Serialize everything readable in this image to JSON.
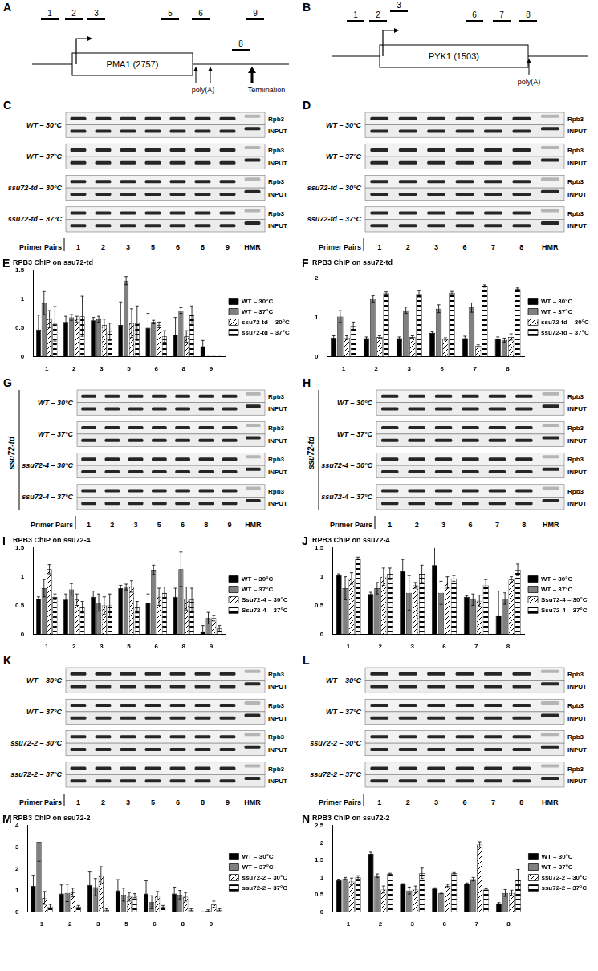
{
  "diagrams": [
    {
      "panel": "A",
      "gene": "PMA1 (2757)",
      "primers": [
        "1",
        "2",
        "3",
        "5",
        "6",
        "8",
        "9"
      ],
      "poly_a": "poly(A)",
      "termination": "Termination"
    },
    {
      "panel": "B",
      "gene": "PYK1 (1503)",
      "primers": [
        "1",
        "2",
        "3",
        "6",
        "7",
        "8"
      ],
      "poly_a": "poly(A)"
    }
  ],
  "gels": [
    {
      "panel": "C",
      "conditions": [
        "WT – 30°C",
        "WT – 37°C",
        "ssu72-td – 30°C",
        "ssu72-td – 37°C"
      ],
      "rows": [
        "Rpb3",
        "INPUT"
      ],
      "lanes": [
        "1",
        "2",
        "3",
        "5",
        "6",
        "8",
        "9",
        "HMR"
      ],
      "axis_label": "Primer Pairs"
    },
    {
      "panel": "D",
      "conditions": [
        "WT – 30°C",
        "WT – 37°C",
        "ssu72-td – 30°C",
        "ssu72-td – 37°C"
      ],
      "rows": [
        "Rpb3",
        "INPUT"
      ],
      "lanes": [
        "1",
        "2",
        "3",
        "6",
        "7",
        "8",
        "HMR"
      ],
      "axis_label": "Primer Pairs"
    },
    {
      "panel": "G",
      "side_label": "ssu72-td",
      "conditions": [
        "WT – 30°C",
        "WT – 37°C",
        "ssu72-4 – 30°C",
        "ssu72-4 – 37°C"
      ],
      "rows": [
        "Rpb3",
        "INPUT"
      ],
      "lanes": [
        "1",
        "2",
        "3",
        "5",
        "6",
        "8",
        "9",
        "HMR"
      ],
      "axis_label": "Primer Pairs"
    },
    {
      "panel": "H",
      "side_label": "ssu72-td",
      "conditions": [
        "WT – 30°C",
        "WT – 37°C",
        "ssu72-4 – 30°C",
        "ssu72-4 – 37°C"
      ],
      "rows": [
        "Rpb3",
        "INPUT"
      ],
      "lanes": [
        "1",
        "2",
        "3",
        "6",
        "7",
        "8",
        "HMR"
      ],
      "axis_label": "Primer Pairs"
    },
    {
      "panel": "K",
      "conditions": [
        "WT – 30°C",
        "WT – 37°C",
        "ssu72-2 – 30°C",
        "ssu72-2 – 37°C"
      ],
      "rows": [
        "Rpb3",
        "INPUT"
      ],
      "lanes": [
        "1",
        "2",
        "3",
        "5",
        "6",
        "8",
        "9",
        "HMR"
      ],
      "axis_label": "Primer Pairs"
    },
    {
      "panel": "L",
      "conditions": [
        "WT – 30°C",
        "WT – 37°C",
        "ssu72-2 – 30°C",
        "ssu72-2 – 37°C"
      ],
      "rows": [
        "Rpb3",
        "INPUT"
      ],
      "lanes": [
        "1",
        "2",
        "3",
        "6",
        "7",
        "8",
        "HMR"
      ],
      "axis_label": "Primer Pairs"
    }
  ],
  "chart_data": [
    {
      "panel": "E",
      "type": "bar",
      "title": "RPB3 ChIP on ssu72-td",
      "categories": [
        "1",
        "2",
        "3",
        "5",
        "6",
        "8",
        "9"
      ],
      "series": [
        {
          "name": "WT – 30°C",
          "color": "#000000",
          "values": [
            0.47,
            0.6,
            0.63,
            0.55,
            0.5,
            0.38,
            0.18
          ],
          "error": [
            0.25,
            0.1,
            0.05,
            0.4,
            0.25,
            0.3,
            0.1
          ]
        },
        {
          "name": "WT – 37°C",
          "color": "#808080",
          "values": [
            0.93,
            0.68,
            0.65,
            1.32,
            0.6,
            0.8,
            0
          ],
          "error": [
            0.2,
            0.05,
            0.05,
            0.07,
            0.03,
            0.05,
            0
          ]
        },
        {
          "name": "ssu72-td – 30°C",
          "color": "#000000",
          "values": [
            0.65,
            0.65,
            0.55,
            0.58,
            0.55,
            0.35,
            0
          ],
          "error": [
            0.15,
            0.05,
            0.1,
            0.25,
            0.05,
            0.1,
            0
          ]
        },
        {
          "name": "ssu72-td – 37°C",
          "color": "#000000",
          "values": [
            0.57,
            0.7,
            0.43,
            0.58,
            0.35,
            0.73,
            0
          ],
          "error": [
            0.3,
            0.35,
            0.15,
            0.3,
            0.1,
            0.15,
            0
          ]
        }
      ],
      "ylim": [
        0,
        1.5
      ],
      "yticks": [
        0,
        0.5,
        1,
        1.5
      ],
      "grid": false,
      "legend": "right"
    },
    {
      "panel": "F",
      "type": "bar",
      "title": "RPB3 ChIP on ssu72-td",
      "categories": [
        "1",
        "2",
        "3",
        "6",
        "7",
        "8"
      ],
      "series": [
        {
          "name": "WT – 30°C",
          "color": "#000000",
          "values": [
            0.48,
            0.47,
            0.47,
            0.6,
            0.47,
            0.45
          ],
          "error": [
            0.05,
            0.03,
            0.03,
            0.03,
            0.05,
            0.05
          ]
        },
        {
          "name": "WT – 37°C",
          "color": "#808080",
          "values": [
            1.02,
            1.47,
            1.18,
            1.22,
            1.25,
            0.42
          ],
          "error": [
            0.15,
            0.08,
            0.08,
            0.1,
            0.12,
            0.05
          ]
        },
        {
          "name": "ssu72-td – 30°C",
          "color": "#000000",
          "values": [
            0.48,
            0.5,
            0.5,
            0.45,
            0.27,
            0.5
          ],
          "error": [
            0.05,
            0.03,
            0.03,
            0.03,
            0.03,
            0.08
          ]
        },
        {
          "name": "ssu72-td – 37°C",
          "color": "#000000",
          "values": [
            0.78,
            1.62,
            1.6,
            1.63,
            1.8,
            1.72
          ],
          "error": [
            0.1,
            0.03,
            0.08,
            0.03,
            0.03,
            0.03
          ]
        }
      ],
      "ylim": [
        0,
        2.2
      ],
      "yticks": [
        0,
        1,
        2
      ],
      "grid": false,
      "legend": "right"
    },
    {
      "panel": "I",
      "type": "bar",
      "title": "RPB3 ChIP on ssu72-4",
      "categories": [
        "1",
        "2",
        "3",
        "5",
        "6",
        "8",
        "9"
      ],
      "series": [
        {
          "name": "WT – 30°C",
          "color": "#000000",
          "values": [
            0.62,
            0.6,
            0.65,
            0.8,
            0.55,
            0.65,
            0.05
          ],
          "error": [
            0.03,
            0.1,
            0.1,
            0.05,
            0.15,
            0.15,
            0.1
          ]
        },
        {
          "name": "WT – 37°C",
          "color": "#808080",
          "values": [
            0.8,
            0.78,
            0.55,
            0.82,
            1.12,
            1.13,
            0.28
          ],
          "error": [
            0.15,
            0.1,
            0.15,
            0.05,
            0.08,
            0.3,
            0.1
          ]
        },
        {
          "name": "Ssu72-4 – 30°C",
          "color": "#000000",
          "values": [
            1.13,
            0.6,
            0.5,
            0.83,
            0.65,
            0.62,
            0.28
          ],
          "error": [
            0.08,
            0.1,
            0.15,
            0.1,
            0.15,
            0.2,
            0.05
          ]
        },
        {
          "name": "Ssu72-4 – 37°C",
          "color": "#000000",
          "values": [
            0.65,
            0.47,
            0.5,
            0.47,
            0.72,
            0.6,
            0.1
          ],
          "error": [
            0.05,
            0.1,
            0.2,
            0.1,
            0.1,
            0.2,
            0.05
          ]
        }
      ],
      "ylim": [
        0,
        1.5
      ],
      "yticks": [
        0,
        0.5,
        1,
        1.5
      ],
      "grid": false,
      "legend": "right"
    },
    {
      "panel": "J",
      "type": "bar",
      "title": "RPB3 ChIP on ssu72-4",
      "categories": [
        "1",
        "2",
        "3",
        "6",
        "7",
        "8"
      ],
      "series": [
        {
          "name": "WT – 30°C",
          "color": "#000000",
          "values": [
            1.03,
            0.7,
            1.1,
            1.2,
            0.65,
            0.33
          ],
          "error": [
            0.02,
            0.03,
            0.2,
            0.42,
            0.02,
            0.42
          ]
        },
        {
          "name": "WT – 37°C",
          "color": "#808080",
          "values": [
            0.8,
            0.8,
            0.72,
            0.72,
            0.6,
            0.62
          ],
          "error": [
            0.2,
            0.1,
            0.3,
            0.2,
            0.1,
            0.1
          ]
        },
        {
          "name": "Ssu72-4 – 30°C",
          "color": "#000000",
          "values": [
            0.97,
            1.0,
            0.85,
            0.9,
            0.58,
            0.95
          ],
          "error": [
            0.1,
            0.15,
            0.05,
            0.1,
            0.1,
            0.05
          ]
        },
        {
          "name": "Ssu72-4 – 37°C",
          "color": "#000000",
          "values": [
            1.32,
            1.05,
            1.05,
            0.97,
            0.85,
            1.12
          ],
          "error": [
            0.02,
            0.1,
            0.15,
            0.05,
            0.1,
            0.1
          ]
        }
      ],
      "ylim": [
        0,
        1.5
      ],
      "yticks": [
        0,
        0.5,
        1,
        1.5
      ],
      "grid": false,
      "legend": "right"
    },
    {
      "panel": "M",
      "type": "bar",
      "title": "RPB3 ChIP on ssu72-2",
      "categories": [
        "1",
        "2",
        "3",
        "5",
        "6",
        "8",
        "9"
      ],
      "series": [
        {
          "name": "WT – 30°C",
          "color": "#000000",
          "values": [
            1.2,
            0.85,
            1.25,
            1.0,
            0.85,
            0.85,
            0
          ],
          "error": [
            0.5,
            0.4,
            0.6,
            0.5,
            0.6,
            0.3,
            0
          ]
        },
        {
          "name": "WT – 37°C",
          "color": "#808080",
          "values": [
            3.25,
            0.88,
            1.15,
            0.8,
            0.45,
            0.8,
            0.05
          ],
          "error": [
            0.9,
            0.4,
            0.4,
            0.3,
            0.3,
            0.2,
            0.05
          ]
        },
        {
          "name": "ssu72-2 – 30°C",
          "color": "#000000",
          "values": [
            0.65,
            0.9,
            1.7,
            0.7,
            0.75,
            0.7,
            0.35
          ],
          "error": [
            0.3,
            0.2,
            0.4,
            0.2,
            0.2,
            0.2,
            0.15
          ]
        },
        {
          "name": "ssu72-2 – 37°C",
          "color": "#000000",
          "values": [
            0.25,
            0.25,
            0.1,
            0.75,
            0.25,
            0.1,
            0.1
          ],
          "error": [
            0.1,
            0.05,
            0.05,
            0.1,
            0.05,
            0.05,
            0.05
          ]
        }
      ],
      "ylim": [
        0,
        4
      ],
      "yticks": [
        0,
        1,
        2,
        3,
        4
      ],
      "grid": false,
      "legend": "right"
    },
    {
      "panel": "N",
      "type": "bar",
      "title": "RPB3 ChIP on ssu72-2",
      "categories": [
        "1",
        "2",
        "3",
        "6",
        "7",
        "8"
      ],
      "series": [
        {
          "name": "WT – 30°C",
          "color": "#000000",
          "values": [
            0.92,
            1.68,
            0.8,
            0.68,
            0.82,
            0.25
          ],
          "error": [
            0.03,
            0.05,
            0.02,
            0.02,
            0.02,
            0.02
          ]
        },
        {
          "name": "WT – 37°C",
          "color": "#808080",
          "values": [
            0.97,
            1.05,
            0.62,
            0.55,
            0.95,
            0.55
          ],
          "error": [
            0.03,
            0.05,
            0.1,
            0.02,
            0.05,
            0.1
          ]
        },
        {
          "name": "ssu72-2 – 30°C",
          "color": "#000000",
          "values": [
            0.88,
            0.65,
            0.65,
            0.75,
            1.95,
            0.55
          ],
          "error": [
            0.1,
            0.1,
            0.1,
            0.05,
            0.08,
            0.08
          ]
        },
        {
          "name": "ssu72-2 – 37°C",
          "color": "#000000",
          "values": [
            1.0,
            1.1,
            1.12,
            1.12,
            0.65,
            0.93
          ],
          "error": [
            0.05,
            0.02,
            0.15,
            0.02,
            0.02,
            0.3
          ]
        }
      ],
      "ylim": [
        0,
        2.5
      ],
      "yticks": [
        0,
        0.5,
        1,
        1.5,
        2,
        2.5
      ],
      "grid": false,
      "legend": "right"
    }
  ]
}
